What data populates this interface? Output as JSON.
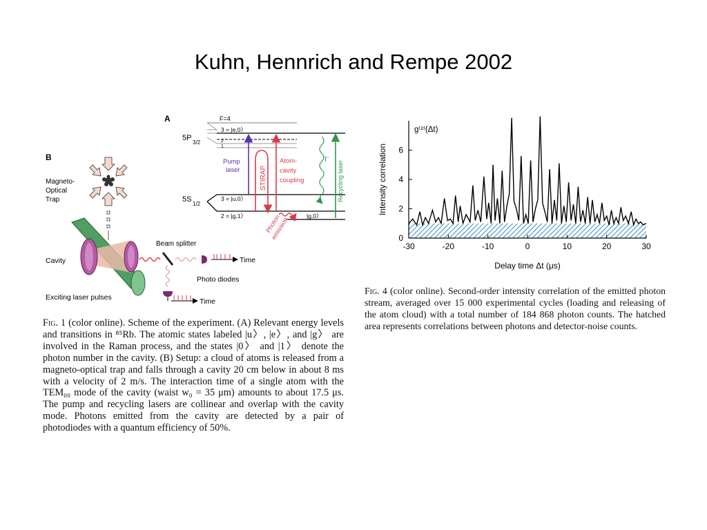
{
  "slide": {
    "title": "Kuhn, Hennrich and Rempe 2002"
  },
  "figure1": {
    "panel_a": {
      "letter": "A",
      "f_label": "F=4",
      "level_5p": "5P",
      "level_5p_sub": "3/2",
      "level_5s": "5S",
      "level_5s_sub": "1/2",
      "sub3_top": "3 = |e,0〉",
      "sub2_top": "2",
      "sub1_top": "1",
      "sub3_bottom": "3 = |u,0〉",
      "sub2_bottom": "2 = |g,1〉",
      "ket_g0": "|g,0〉",
      "pump_laser_line1": "Pump",
      "pump_laser_line2": "laser",
      "stirap": "STIRAP",
      "atom_cavity_line1": "Atom-",
      "atom_cavity_line2": "cavity",
      "atom_cavity_line3": "coupling",
      "gamma": "Γ",
      "recycling": "Recycling laser",
      "photon_emission_line1": "Photon",
      "photon_emission_line2": "emission"
    },
    "panel_b": {
      "letter": "B",
      "mot_line1": "Magneto-",
      "mot_line2": "Optical",
      "mot_line3": "Trap",
      "cavity": "Cavity",
      "beam_splitter": "Beam splitter",
      "time_top": "Time",
      "photo_diodes": "Photo diodes",
      "time_bottom": "Time",
      "exciting": "Exciting laser pulses"
    },
    "caption": {
      "lead": "Fig. 1",
      "text": " (color online). Scheme of the experiment. (A) Relevant energy levels and transitions in ⁸⁵Rb. The atomic states labeled |u〉, |e〉, and |g〉 are involved in the Raman process, and the states |0〉 and |1〉 denote the photon number in the cavity. (B) Setup: a cloud of atoms is released from a magneto-optical trap and falls through a cavity 20 cm below in about 8 ms with a velocity of 2 m/s. The interaction time of a single atom with the TEM₀₀ mode of the cavity (waist w₀ = 35 μm) amounts to about 17.5 μs. The pump and recycling lasers are collinear and overlap with the cavity mode. Photons emitted from the cavity are detected by a pair of photodiodes with a quantum efficiency of 50%."
    }
  },
  "figure4": {
    "caption": {
      "lead": "Fig. 4",
      "text": " (color online).   Second-order intensity correlation of the emitted photon stream, averaged over 15 000 experimental cycles (loading and releasing of the atom cloud) with a total number of 184 868 photon counts. The hatched area represents correlations between photons and detector-noise counts."
    }
  },
  "chart_data": {
    "type": "line",
    "series_label": "g⁽²⁾(Δt)",
    "xlabel": "Delay time  Δt (μs)",
    "ylabel": "Intensity correlation",
    "xlim": [
      -30,
      30
    ],
    "ylim": [
      0,
      8
    ],
    "xticks": [
      "-30",
      "-20",
      "-10",
      "0",
      "10",
      "20",
      "30"
    ],
    "yticks": [
      "0",
      "2",
      "4",
      "6"
    ],
    "grid": false,
    "noise_band": 1.0,
    "hatch_color": "#2d8bc9",
    "series": [
      {
        "x": [
          -30,
          -29,
          -28,
          -27.2,
          -26.5,
          -25.8,
          -25,
          -24,
          -23.2,
          -22.5,
          -21.8,
          -21,
          -20.2,
          -19.5,
          -18.8,
          -18.2,
          -17.5,
          -17,
          -16.3,
          -15.5,
          -14.5,
          -13.8,
          -13.2,
          -12.5,
          -11.8,
          -11,
          -10.3,
          -9.8,
          -9.2,
          -8.7,
          -8.2,
          -7.6,
          -7,
          -6.4,
          -5.8,
          -5.2,
          -4.6,
          -4,
          -3.4,
          -2.8,
          -2.2,
          -1.6,
          -1,
          -0.4,
          0.2,
          0.8,
          1.4,
          2,
          2.6,
          3.2,
          3.8,
          4.4,
          5,
          5.6,
          6.2,
          6.8,
          7.4,
          8,
          8.6,
          9.2,
          9.8,
          10.4,
          11,
          11.6,
          12.2,
          12.8,
          13.4,
          14,
          14.6,
          15.2,
          15.8,
          16.4,
          17,
          17.6,
          18.2,
          18.8,
          19.4,
          20,
          20.6,
          21.2,
          21.8,
          22.4,
          23,
          23.6,
          24.2,
          24.8,
          25.5,
          26.2,
          26.8,
          27.4,
          28,
          28.6,
          29.2,
          30
        ],
        "y": [
          1.0,
          1.3,
          0.9,
          1.8,
          0.9,
          1.4,
          1.0,
          1.9,
          1.1,
          1.4,
          1.0,
          2.7,
          1.2,
          1.3,
          1.0,
          2.9,
          1.1,
          2.2,
          1.0,
          1.6,
          1.1,
          3.6,
          1.2,
          1.9,
          1.1,
          4.2,
          1.3,
          2.4,
          1.0,
          5.0,
          1.2,
          2.7,
          1.0,
          4.6,
          1.1,
          2.2,
          3.0,
          8.2,
          2.5,
          2.0,
          1.2,
          5.6,
          1.0,
          1.6,
          1.0,
          5.3,
          1.1,
          2.0,
          2.6,
          8.3,
          2.4,
          1.8,
          1.1,
          4.7,
          1.0,
          2.6,
          1.2,
          5.1,
          1.0,
          2.2,
          1.1,
          3.8,
          1.2,
          2.3,
          1.0,
          3.5,
          1.1,
          1.9,
          1.0,
          2.8,
          1.0,
          2.6,
          1.1,
          1.6,
          1.0,
          2.4,
          1.2,
          1.5,
          0.9,
          1.9,
          1.0,
          1.4,
          1.0,
          2.1,
          1.2,
          1.5,
          1.0,
          1.8,
          0.9,
          1.3,
          1.0,
          1.1,
          0.9,
          1.0
        ]
      }
    ]
  }
}
